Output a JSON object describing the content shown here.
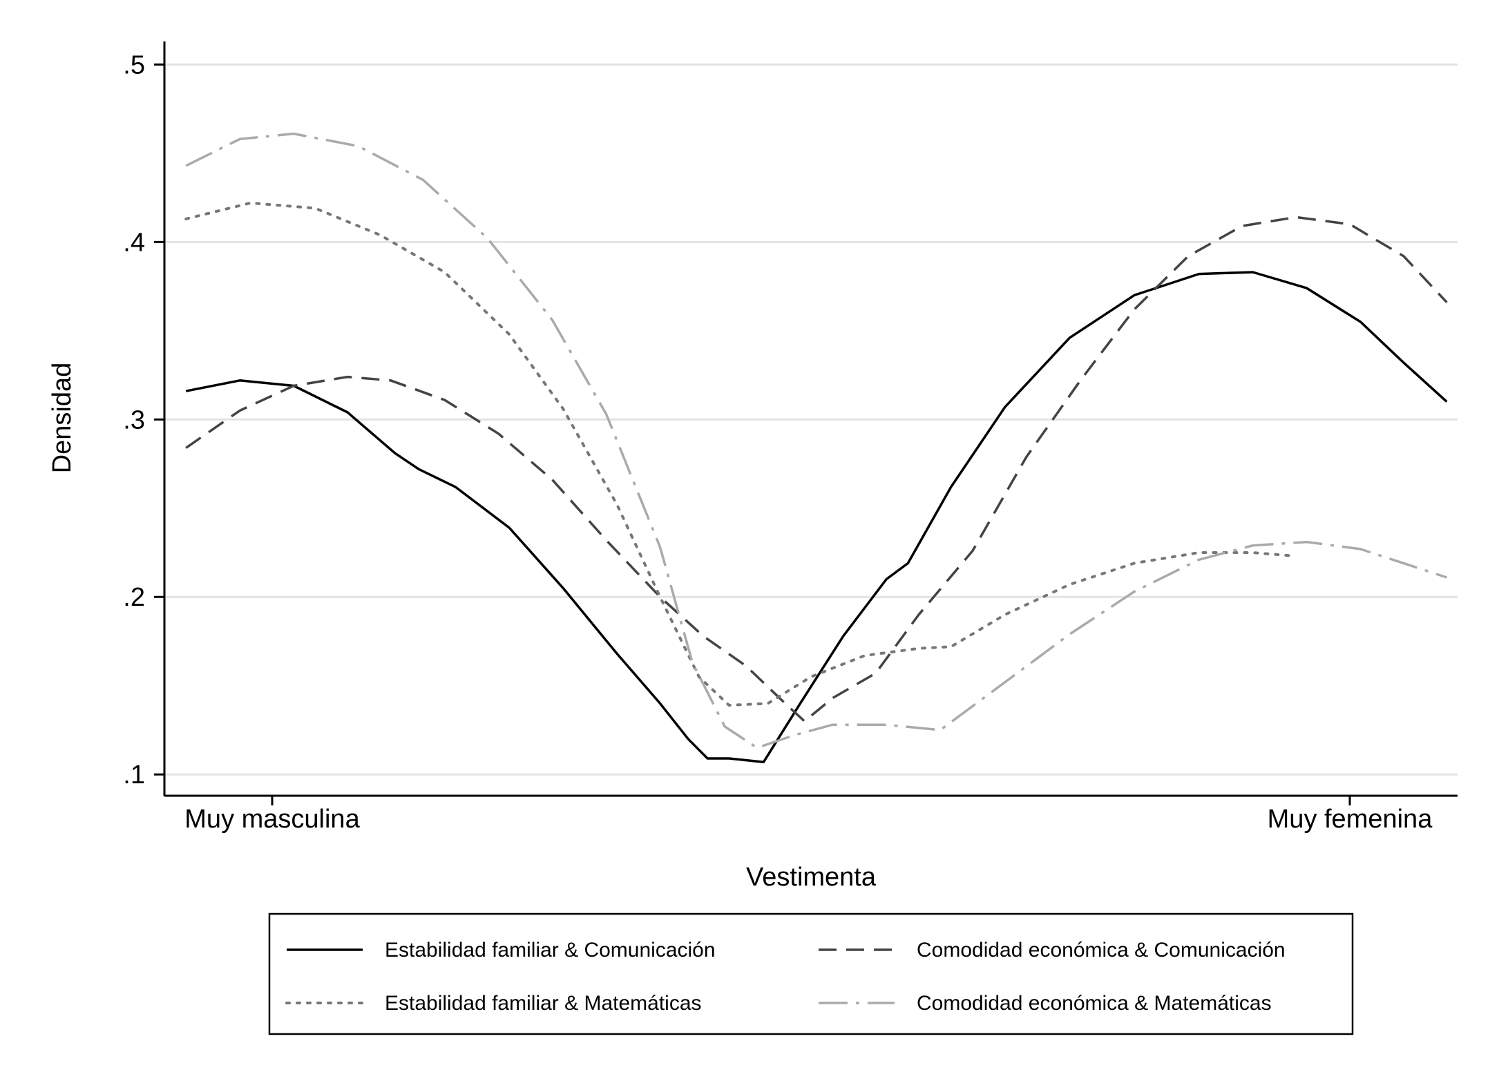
{
  "chart_data": {
    "type": "line",
    "xlabel": "Vestimenta",
    "ylabel": "Densidad",
    "xlim": [
      1,
      7
    ],
    "ylim": [
      0.088,
      0.513
    ],
    "x_tick_labels": [
      {
        "x": 1.5,
        "label": "Muy masculina"
      },
      {
        "x": 6.5,
        "label": "Muy femenina"
      }
    ],
    "y_ticks": [
      {
        "value": 0.1,
        "label": ".1"
      },
      {
        "value": 0.2,
        "label": ".2"
      },
      {
        "value": 0.3,
        "label": ".3"
      },
      {
        "value": 0.4,
        "label": ".4"
      },
      {
        "value": 0.5,
        "label": ".5"
      }
    ],
    "grid": true,
    "legend_position": "bottom",
    "series": [
      {
        "name": "Estabilidad familiar & Comunicación",
        "color": "#000000",
        "style": "solid",
        "points": [
          [
            1.1,
            0.316
          ],
          [
            1.35,
            0.322
          ],
          [
            1.6,
            0.319
          ],
          [
            1.85,
            0.304
          ],
          [
            2.07,
            0.281
          ],
          [
            2.18,
            0.272
          ],
          [
            2.35,
            0.262
          ],
          [
            2.6,
            0.239
          ],
          [
            2.85,
            0.205
          ],
          [
            3.1,
            0.168
          ],
          [
            3.3,
            0.14
          ],
          [
            3.43,
            0.12
          ],
          [
            3.52,
            0.109
          ],
          [
            3.62,
            0.109
          ],
          [
            3.78,
            0.107
          ],
          [
            3.95,
            0.14
          ],
          [
            4.15,
            0.178
          ],
          [
            4.35,
            0.21
          ],
          [
            4.45,
            0.219
          ],
          [
            4.65,
            0.262
          ],
          [
            4.9,
            0.307
          ],
          [
            5.2,
            0.346
          ],
          [
            5.5,
            0.37
          ],
          [
            5.8,
            0.382
          ],
          [
            6.05,
            0.383
          ],
          [
            6.3,
            0.374
          ],
          [
            6.55,
            0.355
          ],
          [
            6.75,
            0.332
          ],
          [
            6.95,
            0.31
          ]
        ]
      },
      {
        "name": "Comodidad económica & Comunicación",
        "color": "#444444",
        "style": "dash",
        "points": [
          [
            1.1,
            0.284
          ],
          [
            1.35,
            0.305
          ],
          [
            1.6,
            0.319
          ],
          [
            1.85,
            0.324
          ],
          [
            2.05,
            0.322
          ],
          [
            2.3,
            0.311
          ],
          [
            2.55,
            0.292
          ],
          [
            2.8,
            0.266
          ],
          [
            3.05,
            0.232
          ],
          [
            3.3,
            0.2
          ],
          [
            3.5,
            0.178
          ],
          [
            3.7,
            0.161
          ],
          [
            3.88,
            0.14
          ],
          [
            3.97,
            0.13
          ],
          [
            4.1,
            0.143
          ],
          [
            4.3,
            0.157
          ],
          [
            4.5,
            0.19
          ],
          [
            4.75,
            0.226
          ],
          [
            5.0,
            0.279
          ],
          [
            5.25,
            0.322
          ],
          [
            5.5,
            0.362
          ],
          [
            5.75,
            0.392
          ],
          [
            6.0,
            0.409
          ],
          [
            6.25,
            0.414
          ],
          [
            6.5,
            0.41
          ],
          [
            6.75,
            0.392
          ],
          [
            6.95,
            0.366
          ]
        ]
      },
      {
        "name": "Estabilidad familiar & Matemáticas",
        "color": "#777777",
        "style": "dot",
        "points": [
          [
            1.1,
            0.413
          ],
          [
            1.4,
            0.422
          ],
          [
            1.7,
            0.419
          ],
          [
            2.0,
            0.404
          ],
          [
            2.3,
            0.383
          ],
          [
            2.6,
            0.348
          ],
          [
            2.85,
            0.306
          ],
          [
            3.1,
            0.252
          ],
          [
            3.3,
            0.2
          ],
          [
            3.48,
            0.155
          ],
          [
            3.62,
            0.139
          ],
          [
            3.8,
            0.14
          ],
          [
            4.0,
            0.155
          ],
          [
            4.25,
            0.167
          ],
          [
            4.5,
            0.171
          ],
          [
            4.65,
            0.172
          ],
          [
            4.9,
            0.19
          ],
          [
            5.2,
            0.207
          ],
          [
            5.5,
            0.219
          ],
          [
            5.8,
            0.225
          ],
          [
            6.05,
            0.225
          ],
          [
            6.25,
            0.223
          ]
        ]
      },
      {
        "name": "Comodidad económica & Matemáticas",
        "color": "#aaaaaa",
        "style": "dashdot",
        "points": [
          [
            1.1,
            0.443
          ],
          [
            1.35,
            0.458
          ],
          [
            1.6,
            0.461
          ],
          [
            1.9,
            0.454
          ],
          [
            2.2,
            0.435
          ],
          [
            2.5,
            0.402
          ],
          [
            2.8,
            0.356
          ],
          [
            3.05,
            0.303
          ],
          [
            3.3,
            0.228
          ],
          [
            3.45,
            0.163
          ],
          [
            3.6,
            0.127
          ],
          [
            3.75,
            0.115
          ],
          [
            3.92,
            0.122
          ],
          [
            4.1,
            0.128
          ],
          [
            4.35,
            0.128
          ],
          [
            4.6,
            0.125
          ],
          [
            4.9,
            0.152
          ],
          [
            5.2,
            0.179
          ],
          [
            5.5,
            0.203
          ],
          [
            5.8,
            0.221
          ],
          [
            6.05,
            0.229
          ],
          [
            6.3,
            0.231
          ],
          [
            6.55,
            0.227
          ],
          [
            6.75,
            0.219
          ],
          [
            6.95,
            0.211
          ]
        ]
      }
    ]
  }
}
